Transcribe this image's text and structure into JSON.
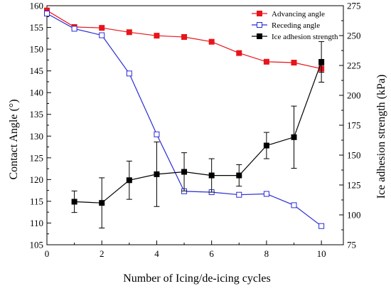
{
  "chart_data": {
    "type": "line",
    "title": "",
    "xlabel": "Number of Icing/de-icing cycles",
    "ylabel_left": "Contact Angle (°)",
    "ylabel_right": "Ice adhesion strength (kPa)",
    "xlim": [
      0,
      10.8
    ],
    "ylim_left": [
      105,
      160
    ],
    "ylim_right": [
      75,
      275
    ],
    "x_ticks": [
      "0",
      "2",
      "4",
      "6",
      "8",
      "10"
    ],
    "y_left_ticks": [
      "105",
      "110",
      "115",
      "120",
      "125",
      "130",
      "135",
      "140",
      "145",
      "150",
      "155",
      "160"
    ],
    "y_right_ticks": [
      "75",
      "100",
      "125",
      "150",
      "175",
      "200",
      "225",
      "250",
      "275"
    ],
    "grid": false,
    "legend_position": "top-right",
    "series": [
      {
        "name": "Advancing angle",
        "axis": "left",
        "color": "#e8141b",
        "marker": "filled-square",
        "x": [
          0,
          1,
          2,
          3,
          4,
          5,
          6,
          7,
          8,
          9,
          10
        ],
        "y": [
          158.9,
          155.1,
          154.9,
          153.9,
          153.1,
          152.8,
          151.7,
          149.1,
          147.1,
          146.9,
          145.5
        ],
        "error": [
          0,
          0,
          0,
          0,
          0,
          0,
          0,
          0,
          0,
          0,
          0.8
        ]
      },
      {
        "name": "Receding angle",
        "axis": "left",
        "color": "#2b2bd6",
        "marker": "open-square",
        "x": [
          0,
          1,
          2,
          3,
          4,
          5,
          6,
          7,
          8,
          9,
          10
        ],
        "y": [
          158.2,
          154.7,
          153.2,
          144.4,
          130.4,
          117.3,
          117.1,
          116.5,
          116.7,
          114.1,
          109.3
        ]
      },
      {
        "name": "Ice adhesion strength",
        "axis": "right",
        "color": "#000000",
        "marker": "filled-square",
        "x": [
          1,
          2,
          3,
          4,
          5,
          6,
          7,
          8,
          9,
          10
        ],
        "y": [
          111,
          110,
          129,
          134,
          136,
          133,
          133,
          158,
          165,
          228
        ],
        "error": [
          9,
          21,
          16,
          27,
          16,
          14,
          9,
          11,
          26,
          17
        ]
      }
    ]
  }
}
